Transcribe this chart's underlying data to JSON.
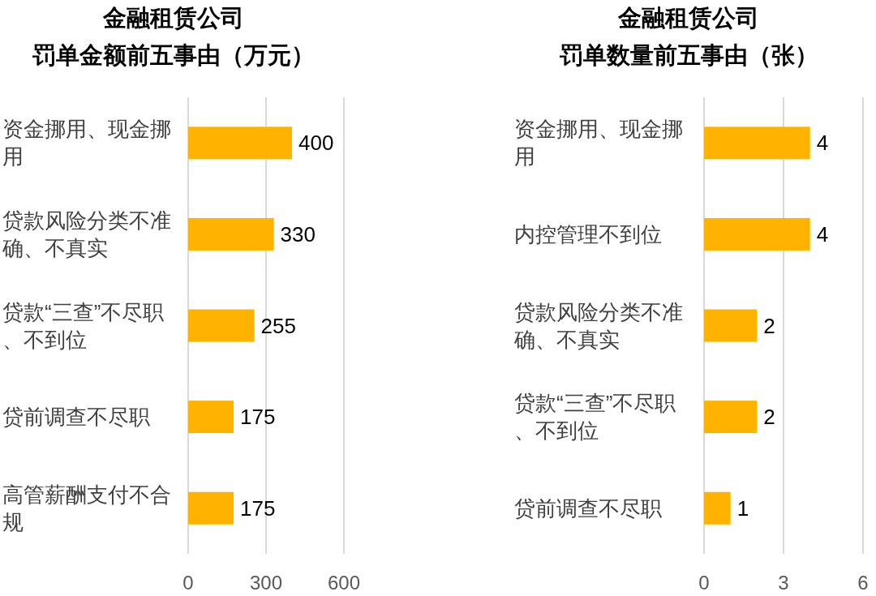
{
  "chart_data": [
    {
      "type": "bar",
      "orientation": "horizontal",
      "title": "金融租赁公司",
      "subtitle": "罚单金额前五事由（万元）",
      "categories": [
        "资金挪用、现金挪用",
        "贷款风险分类不准确、不真实",
        "贷款“三查”不尽职、不到位",
        "贷前调查不尽职",
        "高管薪酬支付不合规"
      ],
      "values": [
        400,
        330,
        255,
        175,
        175
      ],
      "color": "#ffb300",
      "xlim": [
        0,
        600
      ],
      "xticks": [
        0,
        300,
        600
      ],
      "grid": "x",
      "data_labels": true
    },
    {
      "type": "bar",
      "orientation": "horizontal",
      "title": "金融租赁公司",
      "subtitle": "罚单数量前五事由（张）",
      "categories": [
        "资金挪用、现金挪用",
        "内控管理不到位",
        "贷款风险分类不准确、不真实",
        "贷款“三查”不尽职、不到位",
        "贷前调查不尽职"
      ],
      "values": [
        4,
        4,
        2,
        2,
        1
      ],
      "color": "#ffb300",
      "xlim": [
        0,
        6
      ],
      "xticks": [
        0,
        3,
        6
      ],
      "grid": "x",
      "data_labels": true
    }
  ]
}
